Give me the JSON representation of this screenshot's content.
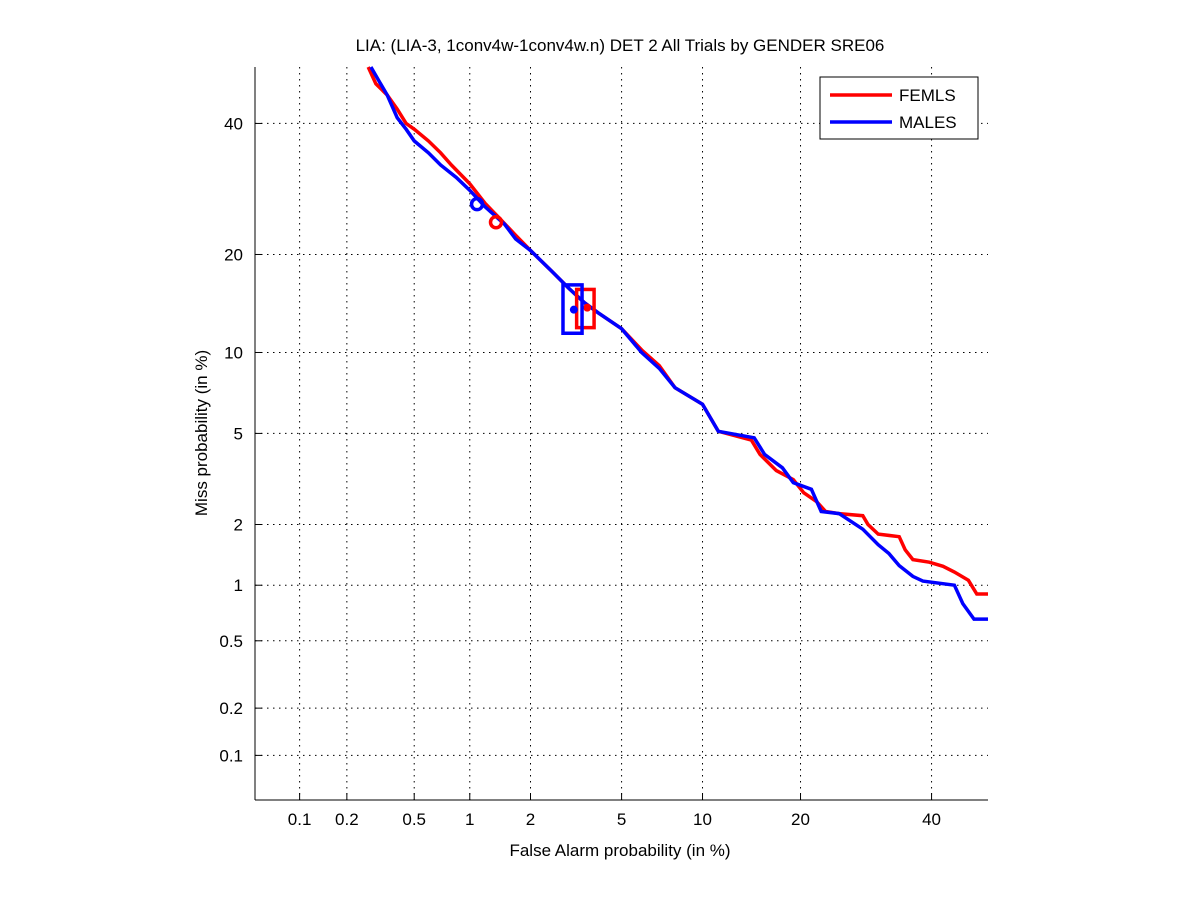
{
  "chart_data": {
    "type": "line",
    "title": "LIA: (LIA-3, 1conv4w-1conv4w.n) DET 2 All Trials by GENDER SRE06",
    "xlabel": "False Alarm probability (in %)",
    "ylabel": "Miss probability (in %)",
    "scale": "probit",
    "xlim": [
      0.05,
      50
    ],
    "ylim": [
      0.05,
      50
    ],
    "grid": true,
    "xticks": [
      0.1,
      0.2,
      0.5,
      1,
      2,
      5,
      10,
      20,
      40
    ],
    "xtick_labels": [
      "0.1",
      "0.2",
      "0.5",
      "1",
      "2",
      "5",
      "10",
      "20",
      "40"
    ],
    "yticks": [
      0.1,
      0.2,
      0.5,
      1,
      2,
      5,
      10,
      20,
      40
    ],
    "ytick_labels": [
      "0.1",
      "0.2",
      "0.5",
      "1",
      "2",
      "5",
      "10",
      "20",
      "40"
    ],
    "legend_position": "top-right",
    "series": [
      {
        "name": "FEMLS",
        "color": "#ff0000",
        "points": [
          [
            0.27,
            50
          ],
          [
            0.3,
            47
          ],
          [
            0.35,
            45
          ],
          [
            0.4,
            42.5
          ],
          [
            0.45,
            40
          ],
          [
            0.5,
            39
          ],
          [
            0.6,
            37
          ],
          [
            0.7,
            35
          ],
          [
            0.8,
            33
          ],
          [
            1,
            30
          ],
          [
            1.2,
            27
          ],
          [
            1.4,
            25
          ],
          [
            1.7,
            22.5
          ],
          [
            2,
            20.5
          ],
          [
            2.5,
            18
          ],
          [
            3,
            16
          ],
          [
            3.5,
            14.5
          ],
          [
            4,
            13.5
          ],
          [
            5,
            12
          ],
          [
            6,
            10.2
          ],
          [
            7,
            9
          ],
          [
            8,
            7.5
          ],
          [
            10,
            6.5
          ],
          [
            11.3,
            5.1
          ],
          [
            14.4,
            4.7
          ],
          [
            15.3,
            4.1
          ],
          [
            17.1,
            3.5
          ],
          [
            19.1,
            3.2
          ],
          [
            20.4,
            2.8
          ],
          [
            22.1,
            2.55
          ],
          [
            23.3,
            2.3
          ],
          [
            25.2,
            2.25
          ],
          [
            28.7,
            2.2
          ],
          [
            29.5,
            2.0
          ],
          [
            31.1,
            1.8
          ],
          [
            34.5,
            1.75
          ],
          [
            35.5,
            1.51
          ],
          [
            36.8,
            1.35
          ],
          [
            39.6,
            1.31
          ],
          [
            42,
            1.25
          ],
          [
            44,
            1.17
          ],
          [
            46.5,
            1.06
          ],
          [
            48,
            0.9
          ],
          [
            50,
            0.9
          ]
        ]
      },
      {
        "name": "MALES",
        "color": "#0000ff",
        "points": [
          [
            0.28,
            50
          ],
          [
            0.32,
            47
          ],
          [
            0.35,
            45
          ],
          [
            0.4,
            41
          ],
          [
            0.45,
            39
          ],
          [
            0.5,
            37
          ],
          [
            0.6,
            35
          ],
          [
            0.7,
            33
          ],
          [
            0.85,
            31
          ],
          [
            1,
            29
          ],
          [
            1.2,
            26.5
          ],
          [
            1.5,
            24
          ],
          [
            1.7,
            22
          ],
          [
            2,
            20.5
          ],
          [
            2.5,
            18
          ],
          [
            3,
            16
          ],
          [
            3.5,
            14.5
          ],
          [
            4,
            13.5
          ],
          [
            5,
            12
          ],
          [
            6,
            10
          ],
          [
            7,
            8.8
          ],
          [
            8,
            7.5
          ],
          [
            10,
            6.5
          ],
          [
            11.3,
            5.1
          ],
          [
            14.7,
            4.8
          ],
          [
            15.8,
            4.1
          ],
          [
            17.8,
            3.6
          ],
          [
            19.1,
            3.1
          ],
          [
            21.4,
            2.9
          ],
          [
            22.7,
            2.3
          ],
          [
            25.2,
            2.25
          ],
          [
            28.7,
            1.9
          ],
          [
            31.1,
            1.6
          ],
          [
            32.8,
            1.45
          ],
          [
            34.5,
            1.26
          ],
          [
            36.8,
            1.11
          ],
          [
            38.5,
            1.05
          ],
          [
            44,
            1.0
          ],
          [
            45.5,
            0.8
          ],
          [
            47.5,
            0.66
          ],
          [
            50,
            0.66
          ]
        ]
      }
    ],
    "markers": [
      {
        "series": "FEMLS",
        "shape": "circle",
        "point": [
          1.36,
          24.3
        ]
      },
      {
        "series": "MALES",
        "shape": "circle",
        "point": [
          1.09,
          26.9
        ]
      },
      {
        "series": "FEMLS",
        "shape": "box",
        "corner1": [
          3.24,
          15.9
        ],
        "corner2": [
          3.85,
          12.1
        ],
        "center": [
          3.6,
          14.0
        ]
      },
      {
        "series": "MALES",
        "shape": "box",
        "corner1": [
          2.82,
          16.4
        ],
        "corner2": [
          3.42,
          11.6
        ],
        "center": [
          3.15,
          13.8
        ]
      }
    ]
  }
}
